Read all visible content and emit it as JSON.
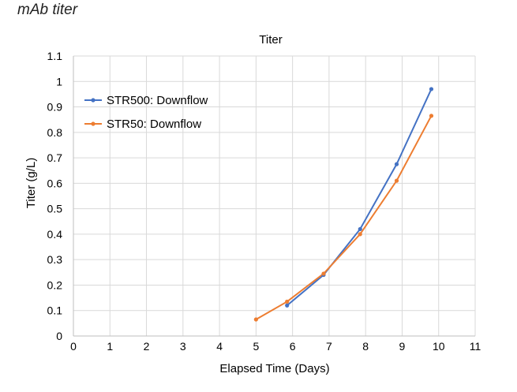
{
  "page": {
    "heading": "mAb titer"
  },
  "chart_data": {
    "type": "line",
    "title": "Titer",
    "xlabel": "Elapsed Time (Days)",
    "ylabel": "Titer (g/L)",
    "xlim": [
      0,
      11
    ],
    "ylim": [
      0,
      1.1
    ],
    "x_ticks": [
      "0",
      "1",
      "2",
      "3",
      "4",
      "5",
      "6",
      "7",
      "8",
      "9",
      "10",
      "11"
    ],
    "y_ticks": [
      "0",
      "0.1",
      "0.2",
      "0.3",
      "0.4",
      "0.5",
      "0.6",
      "0.7",
      "0.8",
      "0.9",
      "1",
      "1.1"
    ],
    "grid": true,
    "legend_position": "top-left",
    "series": [
      {
        "name": "STR500: Downflow",
        "color": "#4472c4",
        "x": [
          5.85,
          6.85,
          7.85,
          8.85,
          9.8
        ],
        "y": [
          0.12,
          0.24,
          0.42,
          0.675,
          0.97
        ]
      },
      {
        "name": "STR50: Downflow",
        "color": "#ed7d31",
        "x": [
          5.0,
          5.85,
          6.85,
          7.85,
          8.85,
          9.8
        ],
        "y": [
          0.065,
          0.135,
          0.245,
          0.4,
          0.61,
          0.865
        ]
      }
    ]
  }
}
